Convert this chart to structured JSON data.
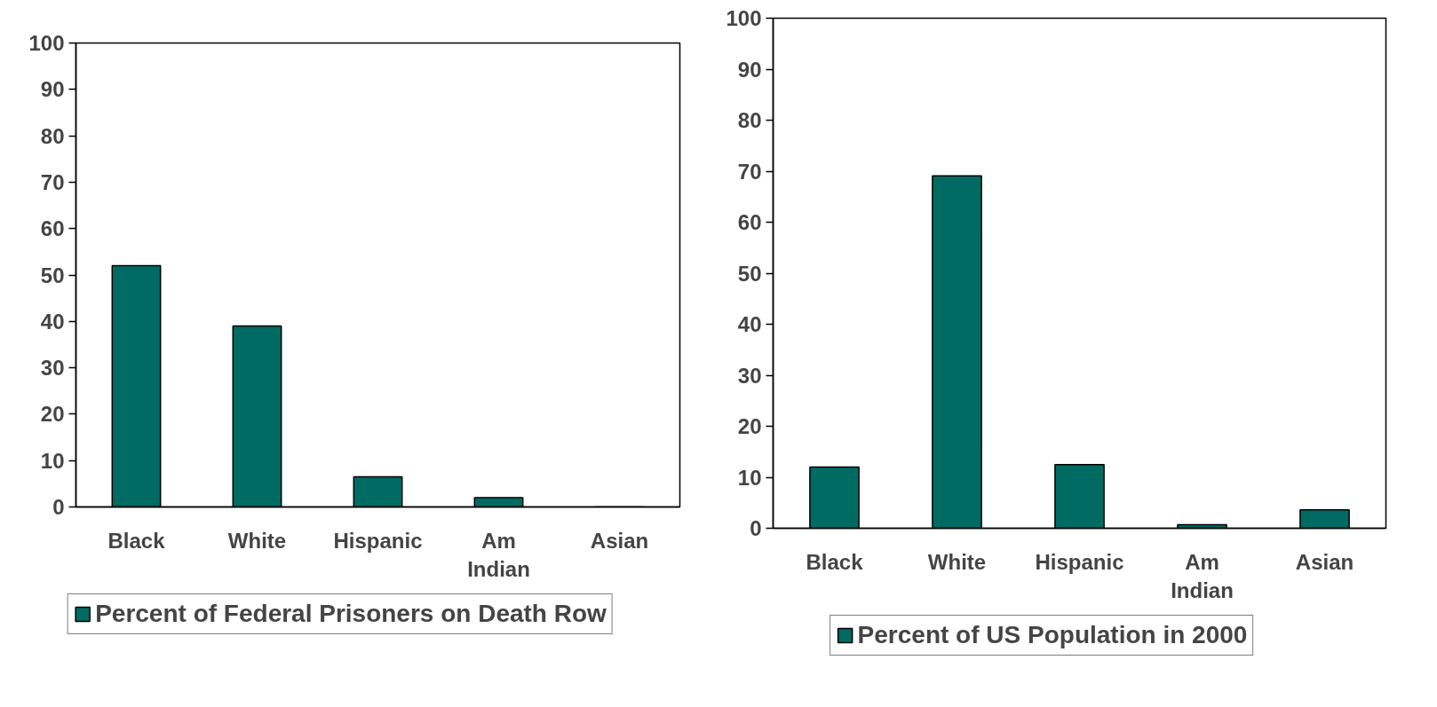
{
  "chart_data": [
    {
      "type": "bar",
      "categories": [
        "Black",
        "White",
        "Hispanic",
        "Am Indian",
        "Asian"
      ],
      "series": [
        {
          "name": "Percent of Federal Prisoners on Death Row",
          "color": "#006b63",
          "values": [
            52,
            39,
            6.5,
            2,
            0
          ]
        }
      ],
      "ylim": [
        0,
        100
      ],
      "yticks": [
        0,
        10,
        20,
        30,
        40,
        50,
        60,
        70,
        80,
        90,
        100
      ],
      "grid": false,
      "legend": "bottom"
    },
    {
      "type": "bar",
      "categories": [
        "Black",
        "White",
        "Hispanic",
        "Am Indian",
        "Asian"
      ],
      "series": [
        {
          "name": "Percent of US Population in 2000",
          "color": "#006b63",
          "values": [
            12,
            69.1,
            12.5,
            0.7,
            3.6
          ]
        }
      ],
      "ylim": [
        0,
        100
      ],
      "yticks": [
        0,
        10,
        20,
        30,
        40,
        50,
        60,
        70,
        80,
        90,
        100
      ],
      "grid": false,
      "legend": "bottom"
    }
  ]
}
